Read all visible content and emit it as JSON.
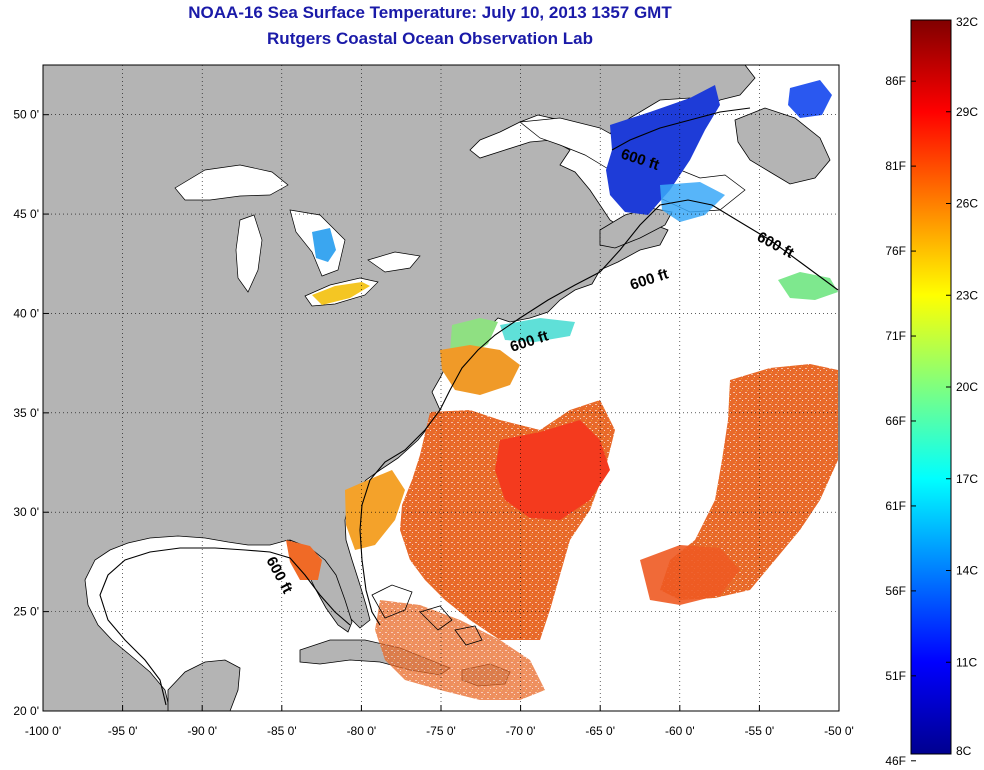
{
  "header": {
    "title": "NOAA-16 Sea Surface Temperature:  July 10, 2013 1357 GMT",
    "subtitle": "Rutgers Coastal Ocean Observation Lab"
  },
  "map": {
    "lon_range": [
      -100,
      -50
    ],
    "lat_range": [
      20,
      52.5
    ],
    "lon_ticks": [
      "-100 0'",
      "-95 0'",
      "-90 0'",
      "-85 0'",
      "-80 0'",
      "-75 0'",
      "-70 0'",
      "-65 0'",
      "-60 0'",
      "-55 0'",
      "-50 0'"
    ],
    "lat_ticks": [
      "20 0'",
      "25 0'",
      "30 0'",
      "35 0'",
      "40 0'",
      "45 0'",
      "50 0'"
    ],
    "contour_labels": [
      "600 ft",
      "600 ft",
      "600 ft",
      "600 ft",
      "600 ft"
    ],
    "land_color": "#b4b4b4",
    "grid": true
  },
  "colorbar": {
    "celsius_labels": [
      "32C",
      "29C",
      "26C",
      "23C",
      "20C",
      "17C",
      "14C",
      "11C",
      "8C"
    ],
    "fahrenheit_labels": [
      "86F",
      "81F",
      "76F",
      "71F",
      "66F",
      "61F",
      "56F",
      "51F",
      "46F"
    ],
    "range_c": [
      8,
      32
    ]
  }
}
